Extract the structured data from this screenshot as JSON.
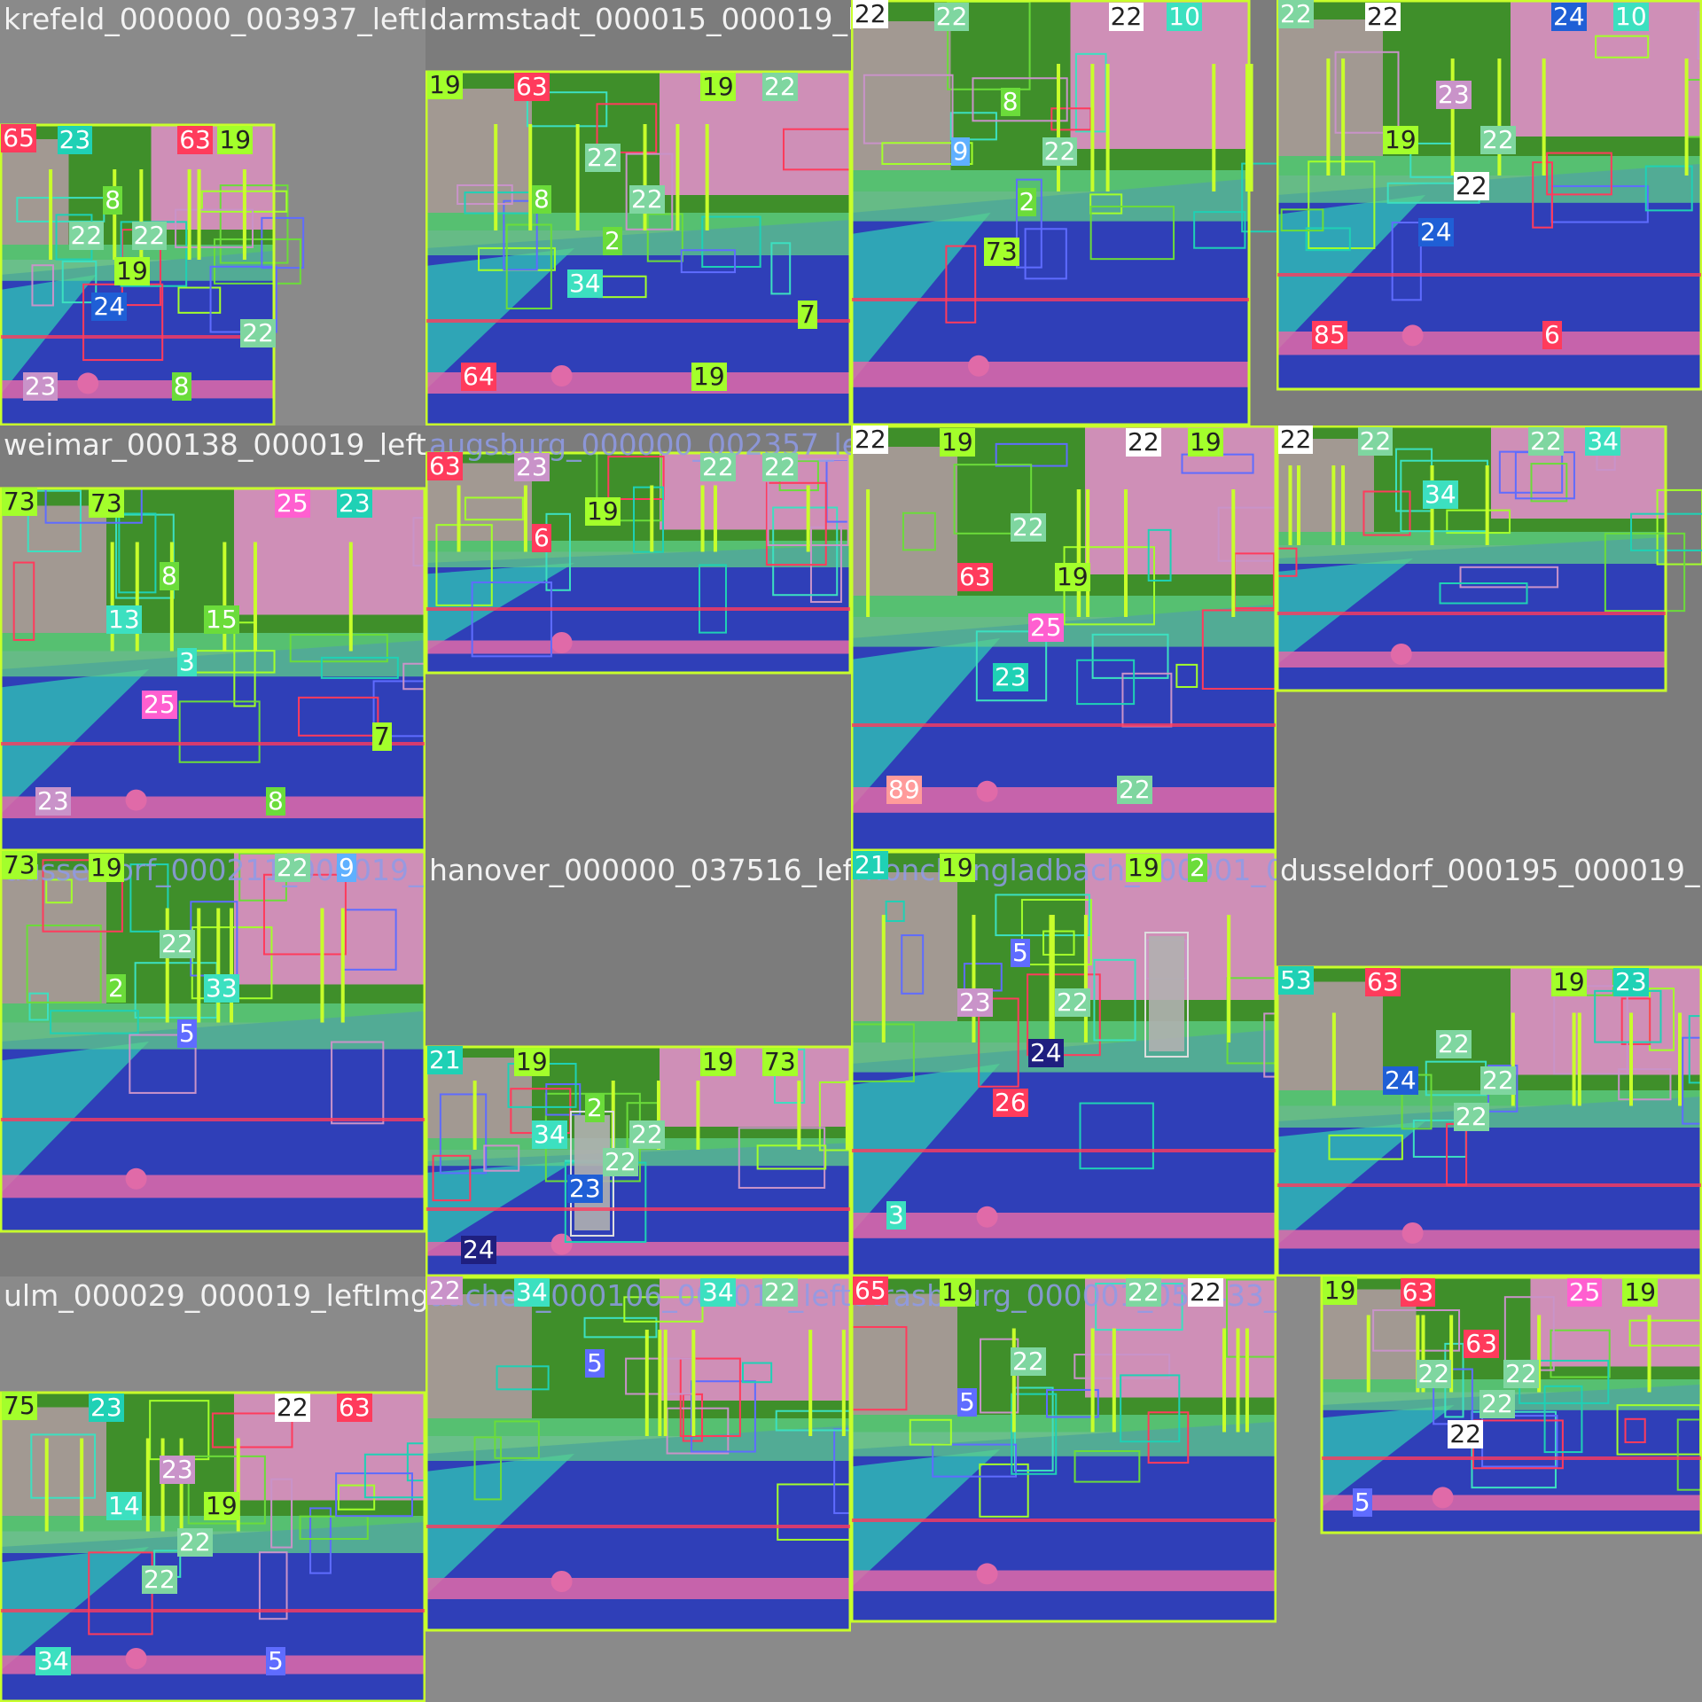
{
  "mosaic": {
    "label_font_size": 28,
    "tiles": [
      {
        "id": "t00",
        "filename": "krefeld_000000_003937_leftImg8bit.png",
        "ghost": "",
        "labels": [
          [
            "65",
            "#ff3b5c"
          ],
          [
            "23",
            "#1fd1b5"
          ],
          [
            "63",
            "#ff3b5c"
          ],
          [
            "19",
            "#a3ff2b"
          ],
          [
            "8",
            "#6bdc3a"
          ],
          [
            "22",
            "#7fd6a0"
          ],
          [
            "22",
            "#7fd6a0"
          ],
          [
            "19",
            "#a3ff2b"
          ],
          [
            "24",
            "#1f5fd6"
          ],
          [
            "23",
            "#c993c9"
          ],
          [
            "8",
            "#6bdc3a"
          ],
          [
            "22",
            "#7fd6a0"
          ]
        ]
      },
      {
        "id": "t01",
        "filename": "darmstadt_000015_000019_leftImg8bit.png",
        "ghost": "",
        "labels": [
          [
            "19",
            "#a3ff2b"
          ],
          [
            "63",
            "#ff3b5c"
          ],
          [
            "19",
            "#a3ff2b"
          ],
          [
            "22",
            "#7fd6a0"
          ],
          [
            "22",
            "#7fd6a0"
          ],
          [
            "8",
            "#6bdc3a"
          ],
          [
            "22",
            "#7fd6a0"
          ],
          [
            "2",
            "#6bdc3a"
          ],
          [
            "34",
            "#3ce0c0"
          ],
          [
            "64",
            "#ff3b5c"
          ],
          [
            "19",
            "#a3ff2b"
          ],
          [
            "7",
            "#a3ff2b"
          ]
        ]
      },
      {
        "id": "t02",
        "filename": "",
        "ghost": "",
        "labels": [
          [
            "22",
            "#ffffff"
          ],
          [
            "22",
            "#7fd6a0"
          ],
          [
            "22",
            "#ffffff"
          ],
          [
            "10",
            "#3ce0c0"
          ],
          [
            "8",
            "#6bdc3a"
          ],
          [
            "9",
            "#5fb0ff"
          ],
          [
            "22",
            "#7fd6a0"
          ],
          [
            "2",
            "#6bdc3a"
          ],
          [
            "73",
            "#a3ff2b"
          ]
        ]
      },
      {
        "id": "t03",
        "filename": "",
        "ghost": "",
        "labels": [
          [
            "22",
            "#7fd6a0"
          ],
          [
            "22",
            "#ffffff"
          ],
          [
            "24",
            "#1f5fd6"
          ],
          [
            "10",
            "#3ce0c0"
          ],
          [
            "23",
            "#c993c9"
          ],
          [
            "19",
            "#a3ff2b"
          ],
          [
            "22",
            "#7fd6a0"
          ],
          [
            "22",
            "#ffffff"
          ],
          [
            "24",
            "#1f5fd6"
          ],
          [
            "85",
            "#ff3b5c"
          ],
          [
            "6",
            "#ff3b5c"
          ]
        ]
      },
      {
        "id": "t10",
        "filename": "weimar_000138_000019_leftImg8bit.png",
        "ghost": "",
        "labels": [
          [
            "73",
            "#a3ff2b"
          ],
          [
            "73",
            "#a3ff2b"
          ],
          [
            "25",
            "#ff5fd0"
          ],
          [
            "23",
            "#1fd1b5"
          ],
          [
            "8",
            "#6bdc3a"
          ],
          [
            "13",
            "#3ce0c0"
          ],
          [
            "15",
            "#6bdc3a"
          ],
          [
            "3",
            "#3ce0c0"
          ],
          [
            "25",
            "#ff5fd0"
          ],
          [
            "23",
            "#c993c9"
          ],
          [
            "8",
            "#6bdc3a"
          ],
          [
            "7",
            "#a3ff2b"
          ]
        ]
      },
      {
        "id": "t11",
        "filename": "",
        "ghost": "augsburg_000000_002357_leftImg8bit.png",
        "labels": [
          [
            "63",
            "#ff3b5c"
          ],
          [
            "23",
            "#c993c9"
          ],
          [
            "22",
            "#7fd6a0"
          ],
          [
            "22",
            "#7fd6a0"
          ],
          [
            "19",
            "#a3ff2b"
          ],
          [
            "6",
            "#ff3b5c"
          ]
        ]
      },
      {
        "id": "t12",
        "filename": "",
        "ghost": "",
        "labels": [
          [
            "22",
            "#ffffff"
          ],
          [
            "19",
            "#a3ff2b"
          ],
          [
            "22",
            "#ffffff"
          ],
          [
            "19",
            "#a3ff2b"
          ],
          [
            "22",
            "#7fd6a0"
          ],
          [
            "63",
            "#ff3b5c"
          ],
          [
            "19",
            "#a3ff2b"
          ],
          [
            "25",
            "#ff5fd0"
          ],
          [
            "23",
            "#1fd1b5"
          ],
          [
            "89",
            "#ff9b9b"
          ],
          [
            "22",
            "#7fd6a0"
          ]
        ]
      },
      {
        "id": "t13",
        "filename": "",
        "ghost": "",
        "labels": [
          [
            "22",
            "#ffffff"
          ],
          [
            "22",
            "#7fd6a0"
          ],
          [
            "22",
            "#7fd6a0"
          ],
          [
            "34",
            "#3ce0c0"
          ],
          [
            "34",
            "#3ce0c0"
          ]
        ]
      },
      {
        "id": "t20",
        "filename": "",
        "ghost": "dusseldorf_000211_000019_leftImg8bit.png",
        "labels": [
          [
            "73",
            "#a3ff2b"
          ],
          [
            "19",
            "#a3ff2b"
          ],
          [
            "22",
            "#7fd6a0"
          ],
          [
            "9",
            "#5fb0ff"
          ],
          [
            "22",
            "#7fd6a0"
          ],
          [
            "2",
            "#6bdc3a"
          ],
          [
            "33",
            "#3ce0c0"
          ],
          [
            "5",
            "#5f6cff"
          ]
        ]
      },
      {
        "id": "t21",
        "filename": "hanover_000000_037516_leftImg8bit.png",
        "ghost": "",
        "labels": [
          [
            "21",
            "#1fd1b5"
          ],
          [
            "19",
            "#a3ff2b"
          ],
          [
            "19",
            "#a3ff2b"
          ],
          [
            "73",
            "#a3ff2b"
          ],
          [
            "2",
            "#6bdc3a"
          ],
          [
            "34",
            "#3ce0c0"
          ],
          [
            "22",
            "#7fd6a0"
          ],
          [
            "22",
            "#7fd6a0"
          ],
          [
            "23",
            "#1f5fd6"
          ],
          [
            "24",
            "#1f1f7f"
          ]
        ]
      },
      {
        "id": "t22",
        "filename": "",
        "ghost": "monchengladbach_000001_000019_leftImg8bit.png",
        "labels": [
          [
            "21",
            "#1fd1b5"
          ],
          [
            "19",
            "#a3ff2b"
          ],
          [
            "19",
            "#a3ff2b"
          ],
          [
            "2",
            "#6bdc3a"
          ],
          [
            "5",
            "#5f6cff"
          ],
          [
            "23",
            "#c993c9"
          ],
          [
            "22",
            "#7fd6a0"
          ],
          [
            "24",
            "#1f1f7f"
          ],
          [
            "26",
            "#ff3b5c"
          ],
          [
            "3",
            "#3ce0c0"
          ]
        ]
      },
      {
        "id": "t23",
        "filename": "dusseldorf_000195_000019_leftImg8bit.png",
        "ghost": "",
        "labels": [
          [
            "53",
            "#1fd1b5"
          ],
          [
            "63",
            "#ff3b5c"
          ],
          [
            "19",
            "#a3ff2b"
          ],
          [
            "23",
            "#1fd1b5"
          ],
          [
            "22",
            "#7fd6a0"
          ],
          [
            "24",
            "#1f5fd6"
          ],
          [
            "22",
            "#7fd6a0"
          ],
          [
            "22",
            "#7fd6a0"
          ]
        ]
      },
      {
        "id": "t30",
        "filename": "ulm_000029_000019_leftImg8bit.png",
        "ghost": "",
        "labels": [
          [
            "75",
            "#a3ff2b"
          ],
          [
            "23",
            "#1fd1b5"
          ],
          [
            "22",
            "#ffffff"
          ],
          [
            "63",
            "#ff3b5c"
          ],
          [
            "23",
            "#c993c9"
          ],
          [
            "14",
            "#3ce0c0"
          ],
          [
            "19",
            "#a3ff2b"
          ],
          [
            "22",
            "#7fd6a0"
          ],
          [
            "22",
            "#7fd6a0"
          ],
          [
            "34",
            "#3ce0c0"
          ],
          [
            "5",
            "#5f6cff"
          ]
        ]
      },
      {
        "id": "t31",
        "filename": "",
        "ghost": "aachen_000106_000019_leftImg8bit.png",
        "labels": [
          [
            "22",
            "#c993c9"
          ],
          [
            "34",
            "#3ce0c0"
          ],
          [
            "34",
            "#3ce0c0"
          ],
          [
            "22",
            "#7fd6a0"
          ],
          [
            "5",
            "#5f6cff"
          ]
        ]
      },
      {
        "id": "t32",
        "filename": "",
        "ghost": "strasbourg_000001_059433_leftImg8bit.png",
        "labels": [
          [
            "65",
            "#ff3b5c"
          ],
          [
            "19",
            "#a3ff2b"
          ],
          [
            "22",
            "#7fd6a0"
          ],
          [
            "22",
            "#ffffff"
          ],
          [
            "22",
            "#7fd6a0"
          ],
          [
            "5",
            "#5f6cff"
          ]
        ]
      },
      {
        "id": "t33",
        "filename": "",
        "ghost": "",
        "labels": [
          [
            "19",
            "#a3ff2b"
          ],
          [
            "63",
            "#ff3b5c"
          ],
          [
            "25",
            "#ff5fd0"
          ],
          [
            "19",
            "#a3ff2b"
          ],
          [
            "63",
            "#ff3b5c"
          ],
          [
            "22",
            "#7fd6a0"
          ],
          [
            "22",
            "#7fd6a0"
          ],
          [
            "22",
            "#7fd6a0"
          ],
          [
            "22",
            "#ffffff"
          ],
          [
            "5",
            "#5f6cff"
          ]
        ]
      }
    ]
  }
}
